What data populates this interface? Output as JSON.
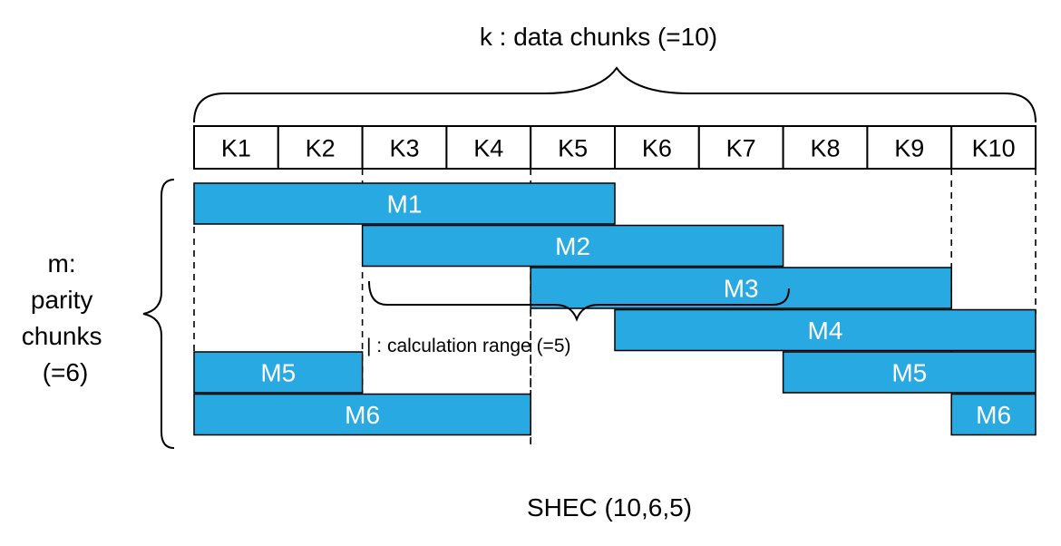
{
  "title": "k : data chunks (=10)",
  "parity_label_lines": [
    "m:",
    "parity",
    "chunks",
    "(=6)"
  ],
  "data_chunks": [
    "K1",
    "K2",
    "K3",
    "K4",
    "K5",
    "K6",
    "K7",
    "K8",
    "K9",
    "K10"
  ],
  "parity_segments": [
    {
      "label": "M1",
      "row": 1,
      "start": 1,
      "end": 5
    },
    {
      "label": "M2",
      "row": 2,
      "start": 3,
      "end": 7
    },
    {
      "label": "M3",
      "row": 3,
      "start": 5,
      "end": 9
    },
    {
      "label": "M4",
      "row": 4,
      "start": 6,
      "end": 10
    },
    {
      "label": "M5",
      "row": 5,
      "start": 1,
      "end": 2
    },
    {
      "label": "M5",
      "row": 5,
      "start": 8,
      "end": 10
    },
    {
      "label": "M6",
      "row": 6,
      "start": 1,
      "end": 4
    },
    {
      "label": "M6",
      "row": 6,
      "start": 10,
      "end": 10
    }
  ],
  "calculation_range_label": "| : calculation range (=5)",
  "caption": "SHEC (10,6,5)",
  "colors": {
    "parity_fill": "#29a9e1",
    "parity_text": "#ffffff",
    "stroke": "#000000",
    "background": "#ffffff"
  }
}
